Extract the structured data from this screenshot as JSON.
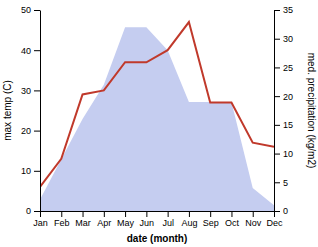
{
  "chart_data": {
    "type": "line",
    "x_label": "date (month)",
    "y_label": "max temp (C)",
    "y2_label": "med. precipitation (kg/m2)",
    "categories": [
      "Jan",
      "Feb",
      "Mar",
      "Apr",
      "May",
      "Jun",
      "Jul",
      "Aug",
      "Sep",
      "Oct",
      "Nov",
      "Dec"
    ],
    "series": [
      {
        "type": "area",
        "axis": "y2",
        "color": "#c5cdf0",
        "values": [
          2,
          9,
          16,
          22,
          32,
          32,
          28,
          19,
          19,
          19,
          4,
          1
        ]
      },
      {
        "type": "line",
        "axis": "y",
        "color": "#c0392b",
        "values": [
          6,
          13,
          29,
          30,
          37,
          37,
          40,
          47,
          27,
          27,
          17,
          16
        ]
      }
    ],
    "ylim": [
      0,
      50
    ],
    "yticks": [
      0,
      10,
      20,
      30,
      40,
      50
    ],
    "y2lim": [
      0,
      35
    ],
    "y2ticks": [
      0,
      5,
      10,
      15,
      20,
      25,
      30,
      35
    ],
    "grid": false
  }
}
